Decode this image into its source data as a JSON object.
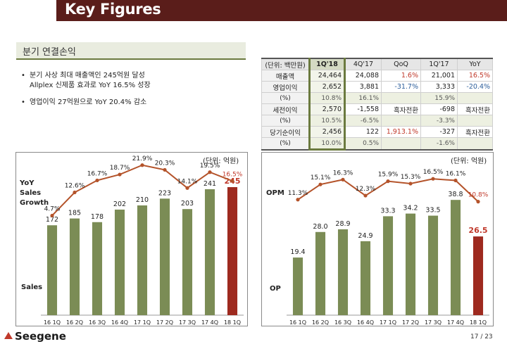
{
  "header": {
    "title": "Key Figures"
  },
  "section": {
    "title": "분기 연결손익"
  },
  "bullets": [
    {
      "line1": "분기 사상 최대 매출액인 245억원 달성",
      "line2": "Allplex 신제품 효과로 YoY 16.5% 성장"
    },
    {
      "line1": "영업이익 27억원으로 YoY 20.4% 감소"
    }
  ],
  "table": {
    "headers": [
      "(단위: 백만원)",
      "1Q'18",
      "4Q'17",
      "QoQ",
      "1Q'17",
      "YoY"
    ],
    "rows": [
      {
        "label": "매출액",
        "cells": [
          "24,464",
          "24,088",
          "1.6%",
          "21,001",
          "16.5%"
        ]
      },
      {
        "label": "영업이익",
        "cells": [
          "2,652",
          "3,881",
          "-31.7%",
          "3,333",
          "-20.4%"
        ]
      },
      {
        "label": "(%)",
        "cells": [
          "10.8%",
          "16.1%",
          "",
          "15.9%",
          ""
        ]
      },
      {
        "label": "세전이익",
        "cells": [
          "2,570",
          "-1,558",
          "흑자전환",
          "-698",
          "흑자전환"
        ]
      },
      {
        "label": "(%)",
        "cells": [
          "10.5%",
          "-6.5%",
          "",
          "-3.3%",
          ""
        ]
      },
      {
        "label": "당기순이익",
        "cells": [
          "2,456",
          "122",
          "1,913.1%",
          "-327",
          "흑자전환"
        ]
      },
      {
        "label": "(%)",
        "cells": [
          "10.0%",
          "0.5%",
          "",
          "-1.6%",
          ""
        ]
      }
    ]
  },
  "left_chart": {
    "unit": "(단위: 억원)",
    "line_label": "YoY Sales Growth",
    "bar_label": "Sales"
  },
  "right_chart": {
    "unit": "(단위: 억원)",
    "line_label": "OPM",
    "bar_label": "OP"
  },
  "colors": {
    "header": "#5a1d1a",
    "bar": "#7b8c55",
    "bar_highlight": "#9e2a1f",
    "line": "#b4532a",
    "accent_red": "#c0392b",
    "accent_blue": "#2e5f9b"
  },
  "footer": {
    "logo": "Seegene",
    "page": "17 / 23"
  },
  "chart_data": [
    {
      "type": "bar",
      "categories": [
        "16 1Q",
        "16 2Q",
        "16 3Q",
        "16 4Q",
        "17 1Q",
        "17 2Q",
        "17 3Q",
        "17 4Q",
        "18 1Q"
      ],
      "series": [
        {
          "name": "Sales",
          "values": [
            172,
            185,
            178,
            202,
            210,
            223,
            203,
            241,
            245
          ]
        },
        {
          "name": "YoY Sales Growth",
          "type": "line",
          "values": [
            4.7,
            12.6,
            16.7,
            18.7,
            21.9,
            20.3,
            14.1,
            19.5,
            16.5
          ],
          "labels": [
            "4.7%",
            "12.6%",
            "16.7%",
            "18.7%",
            "21.9%",
            "20.3%",
            "14.1%",
            "19.5%",
            "16.5%"
          ]
        }
      ],
      "ylim": [
        0,
        280
      ],
      "ylim_line": [
        0,
        24
      ]
    },
    {
      "type": "bar",
      "categories": [
        "16 1Q",
        "16 2Q",
        "16 3Q",
        "16 4Q",
        "17 1Q",
        "17 2Q",
        "17 3Q",
        "17 4Q",
        "18 1Q"
      ],
      "series": [
        {
          "name": "OP",
          "values": [
            19.4,
            28.0,
            28.9,
            24.9,
            33.3,
            34.2,
            33.5,
            38.8,
            26.5
          ]
        },
        {
          "name": "OPM",
          "type": "line",
          "values": [
            11.3,
            15.1,
            16.3,
            12.3,
            15.9,
            15.3,
            16.5,
            16.1,
            10.8
          ],
          "labels": [
            "11.3%",
            "15.1%",
            "16.3%",
            "12.3%",
            "15.9%",
            "15.3%",
            "16.5%",
            "16.1%",
            "10.8%"
          ]
        }
      ],
      "ylim": [
        0,
        45
      ],
      "ylim_line": [
        0,
        19
      ]
    }
  ]
}
